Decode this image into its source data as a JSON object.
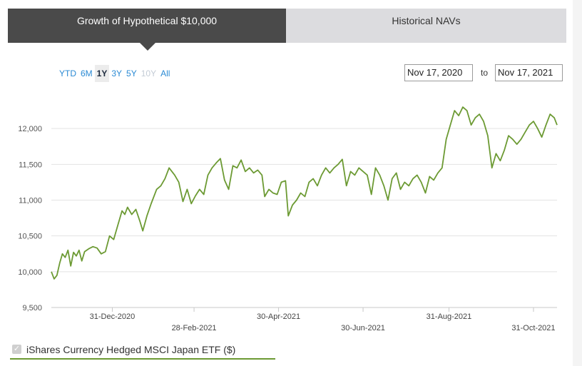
{
  "tabs": [
    {
      "label": "Growth of Hypothetical $10,000",
      "active": true
    },
    {
      "label": "Historical NAVs",
      "active": false
    }
  ],
  "ranges": [
    {
      "label": "YTD",
      "state": "normal"
    },
    {
      "label": "6M",
      "state": "normal"
    },
    {
      "label": "1Y",
      "state": "active"
    },
    {
      "label": "3Y",
      "state": "normal"
    },
    {
      "label": "5Y",
      "state": "normal"
    },
    {
      "label": "10Y",
      "state": "disabled"
    },
    {
      "label": "All",
      "state": "normal"
    }
  ],
  "date_range": {
    "from": "Nov 17, 2020",
    "to_label": "to",
    "to": "Nov 17, 2021"
  },
  "legend": {
    "label": "iShares Currency Hedged MSCI Japan ETF ($)",
    "checked": true
  },
  "colors": {
    "line": "#6c9a33",
    "grid": "#e3e3e3",
    "active_tab": "#4a4a4a"
  },
  "chart_data": {
    "type": "line",
    "title": "",
    "xlabel": "",
    "ylabel": "",
    "ylim": [
      9500,
      12500
    ],
    "y_ticks": [
      9500,
      10000,
      10500,
      11000,
      11500,
      12000
    ],
    "y_tick_labels": [
      "9,500",
      "10,000",
      "10,500",
      "11,000",
      "11,500",
      "12,000"
    ],
    "x_range": [
      "2020-11-17",
      "2021-11-17"
    ],
    "x_ticks": [
      {
        "date": "2020-12-31",
        "label": "31-Dec-2020"
      },
      {
        "date": "2021-02-28",
        "label": "28-Feb-2021"
      },
      {
        "date": "2021-04-30",
        "label": "30-Apr-2021"
      },
      {
        "date": "2021-06-30",
        "label": "30-Jun-2021"
      },
      {
        "date": "2021-08-31",
        "label": "31-Aug-2021"
      },
      {
        "date": "2021-10-31",
        "label": "31-Oct-2021"
      }
    ],
    "grid": true,
    "legend_position": "bottom-left",
    "series": [
      {
        "name": "iShares Currency Hedged MSCI Japan ETF ($)",
        "points": [
          [
            "2020-11-17",
            10000
          ],
          [
            "2020-11-19",
            9900
          ],
          [
            "2020-11-21",
            9950
          ],
          [
            "2020-11-23",
            10120
          ],
          [
            "2020-11-25",
            10250
          ],
          [
            "2020-11-27",
            10200
          ],
          [
            "2020-11-29",
            10300
          ],
          [
            "2020-12-01",
            10080
          ],
          [
            "2020-12-03",
            10270
          ],
          [
            "2020-12-05",
            10220
          ],
          [
            "2020-12-07",
            10300
          ],
          [
            "2020-12-09",
            10150
          ],
          [
            "2020-12-11",
            10280
          ],
          [
            "2020-12-14",
            10320
          ],
          [
            "2020-12-17",
            10350
          ],
          [
            "2020-12-20",
            10330
          ],
          [
            "2020-12-23",
            10250
          ],
          [
            "2020-12-26",
            10280
          ],
          [
            "2020-12-29",
            10500
          ],
          [
            "2021-01-01",
            10450
          ],
          [
            "2021-01-04",
            10650
          ],
          [
            "2021-01-07",
            10850
          ],
          [
            "2021-01-09",
            10800
          ],
          [
            "2021-01-11",
            10900
          ],
          [
            "2021-01-14",
            10800
          ],
          [
            "2021-01-17",
            10870
          ],
          [
            "2021-01-20",
            10700
          ],
          [
            "2021-01-22",
            10570
          ],
          [
            "2021-01-25",
            10780
          ],
          [
            "2021-01-28",
            10950
          ],
          [
            "2021-02-01",
            11150
          ],
          [
            "2021-02-04",
            11200
          ],
          [
            "2021-02-07",
            11300
          ],
          [
            "2021-02-10",
            11450
          ],
          [
            "2021-02-14",
            11350
          ],
          [
            "2021-02-17",
            11250
          ],
          [
            "2021-02-20",
            10980
          ],
          [
            "2021-02-23",
            11150
          ],
          [
            "2021-02-26",
            10950
          ],
          [
            "2021-03-01",
            11060
          ],
          [
            "2021-03-04",
            11150
          ],
          [
            "2021-03-07",
            11080
          ],
          [
            "2021-03-10",
            11350
          ],
          [
            "2021-03-13",
            11450
          ],
          [
            "2021-03-16",
            11520
          ],
          [
            "2021-03-19",
            11580
          ],
          [
            "2021-03-22",
            11280
          ],
          [
            "2021-03-25",
            11150
          ],
          [
            "2021-03-28",
            11480
          ],
          [
            "2021-03-31",
            11450
          ],
          [
            "2021-04-03",
            11560
          ],
          [
            "2021-04-06",
            11400
          ],
          [
            "2021-04-09",
            11450
          ],
          [
            "2021-04-12",
            11380
          ],
          [
            "2021-04-15",
            11420
          ],
          [
            "2021-04-18",
            11350
          ],
          [
            "2021-04-20",
            11050
          ],
          [
            "2021-04-23",
            11150
          ],
          [
            "2021-04-26",
            11100
          ],
          [
            "2021-04-29",
            11080
          ],
          [
            "2021-05-02",
            11250
          ],
          [
            "2021-05-05",
            11270
          ],
          [
            "2021-05-07",
            10780
          ],
          [
            "2021-05-10",
            10930
          ],
          [
            "2021-05-13",
            11000
          ],
          [
            "2021-05-16",
            11100
          ],
          [
            "2021-05-19",
            11050
          ],
          [
            "2021-05-22",
            11250
          ],
          [
            "2021-05-25",
            11300
          ],
          [
            "2021-05-28",
            11200
          ],
          [
            "2021-05-31",
            11350
          ],
          [
            "2021-06-03",
            11450
          ],
          [
            "2021-06-06",
            11380
          ],
          [
            "2021-06-09",
            11450
          ],
          [
            "2021-06-12",
            11500
          ],
          [
            "2021-06-15",
            11570
          ],
          [
            "2021-06-18",
            11200
          ],
          [
            "2021-06-21",
            11400
          ],
          [
            "2021-06-24",
            11350
          ],
          [
            "2021-06-27",
            11450
          ],
          [
            "2021-06-30",
            11400
          ],
          [
            "2021-07-03",
            11350
          ],
          [
            "2021-07-06",
            11080
          ],
          [
            "2021-07-09",
            11450
          ],
          [
            "2021-07-12",
            11350
          ],
          [
            "2021-07-15",
            11200
          ],
          [
            "2021-07-18",
            11000
          ],
          [
            "2021-07-21",
            11300
          ],
          [
            "2021-07-24",
            11380
          ],
          [
            "2021-07-27",
            11150
          ],
          [
            "2021-07-30",
            11250
          ],
          [
            "2021-08-02",
            11200
          ],
          [
            "2021-08-05",
            11300
          ],
          [
            "2021-08-08",
            11350
          ],
          [
            "2021-08-11",
            11250
          ],
          [
            "2021-08-14",
            11100
          ],
          [
            "2021-08-17",
            11330
          ],
          [
            "2021-08-20",
            11280
          ],
          [
            "2021-08-23",
            11380
          ],
          [
            "2021-08-26",
            11450
          ],
          [
            "2021-08-29",
            11850
          ],
          [
            "2021-09-01",
            12050
          ],
          [
            "2021-09-04",
            12250
          ],
          [
            "2021-09-07",
            12180
          ],
          [
            "2021-09-10",
            12300
          ],
          [
            "2021-09-13",
            12250
          ],
          [
            "2021-09-16",
            12050
          ],
          [
            "2021-09-19",
            12150
          ],
          [
            "2021-09-22",
            12200
          ],
          [
            "2021-09-25",
            12100
          ],
          [
            "2021-09-28",
            11900
          ],
          [
            "2021-10-01",
            11450
          ],
          [
            "2021-10-04",
            11650
          ],
          [
            "2021-10-07",
            11550
          ],
          [
            "2021-10-10",
            11700
          ],
          [
            "2021-10-13",
            11900
          ],
          [
            "2021-10-16",
            11850
          ],
          [
            "2021-10-19",
            11780
          ],
          [
            "2021-10-22",
            11850
          ],
          [
            "2021-10-25",
            11950
          ],
          [
            "2021-10-28",
            12050
          ],
          [
            "2021-10-31",
            12100
          ],
          [
            "2021-11-03",
            12000
          ],
          [
            "2021-11-06",
            11880
          ],
          [
            "2021-11-09",
            12050
          ],
          [
            "2021-11-12",
            12200
          ],
          [
            "2021-11-15",
            12150
          ],
          [
            "2021-11-17",
            12050
          ]
        ]
      }
    ]
  }
}
